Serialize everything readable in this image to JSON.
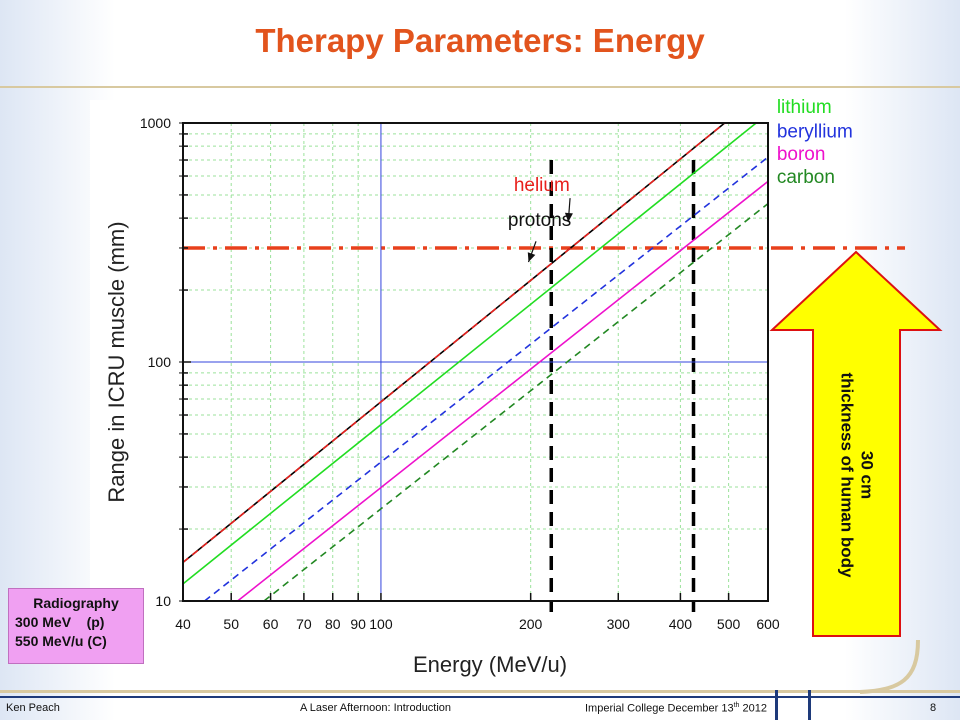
{
  "slide": {
    "title": "Therapy Parameters: Energy",
    "footer": {
      "author": "Ken Peach",
      "event": "A Laser Afternoon: Introduction",
      "venue": "Imperial College December 13",
      "venue_suffix": "th",
      "year": " 2012",
      "page": "8"
    }
  },
  "annotations": {
    "arrow_label_line1": "30 cm",
    "arrow_label_line2": "thickness of human body",
    "radiography_title": "Radiography",
    "radiography_line1": "300 MeV    (p)",
    "radiography_line2": "550 MeV/u (C)"
  },
  "colors": {
    "protons": "#000000",
    "helium": "#e8201c",
    "lithium": "#22dd22",
    "beryllium": "#2233dd",
    "boron": "#ee11cc",
    "carbon": "#228822",
    "threshold": "#e8401c",
    "arrow_fill": "#ffff00",
    "arrow_stroke": "#dd1111"
  },
  "chart_data": {
    "type": "line",
    "xlabel": "Energy (MeV/u)",
    "ylabel": "Range in ICRU muscle (mm)",
    "xscale": "log",
    "yscale": "log",
    "xlim": [
      40,
      600
    ],
    "ylim": [
      10,
      1000
    ],
    "x_ticks": [
      40,
      50,
      60,
      70,
      80,
      90,
      100,
      200,
      300,
      400,
      500,
      600
    ],
    "x_tick_labels": [
      "40",
      "50",
      "60",
      "70",
      "80",
      "90",
      "100",
      "200",
      "300",
      "400",
      "500",
      "600"
    ],
    "y_ticks": [
      10,
      100,
      1000
    ],
    "y_tick_labels": [
      "10",
      "100",
      "1000"
    ],
    "grid": true,
    "series": [
      {
        "name": "protons",
        "style": "solid",
        "points": [
          [
            40,
            14.5
          ],
          [
            491,
            1000
          ]
        ]
      },
      {
        "name": "helium",
        "style": "dashed",
        "points": [
          [
            40,
            14.5
          ],
          [
            491,
            1000
          ]
        ]
      },
      {
        "name": "lithium",
        "style": "solid",
        "points": [
          [
            40,
            11.8
          ],
          [
            568,
            1000
          ]
        ]
      },
      {
        "name": "beryllium",
        "style": "dashed",
        "points": [
          [
            44.2,
            10
          ],
          [
            600,
            720
          ]
        ]
      },
      {
        "name": "boron",
        "style": "solid",
        "points": [
          [
            51.5,
            10
          ],
          [
            600,
            570
          ]
        ]
      },
      {
        "name": "carbon",
        "style": "dashed",
        "points": [
          [
            58.2,
            10
          ],
          [
            600,
            460
          ]
        ]
      }
    ],
    "annotations": [
      {
        "text": "protons",
        "x": 180,
        "y": 370,
        "color": "#111111"
      },
      {
        "text": "helium",
        "x": 185,
        "y": 520,
        "color": "#e8201c"
      },
      {
        "text": "lithium",
        "x": 625,
        "y": 1100,
        "color": "#22dd22"
      },
      {
        "text": "beryllium",
        "x": 625,
        "y": 870,
        "color": "#2233dd"
      },
      {
        "text": "boron",
        "x": 625,
        "y": 700,
        "color": "#ee11cc"
      },
      {
        "text": "carbon",
        "x": 625,
        "y": 560,
        "color": "#228822"
      }
    ],
    "reference_lines": [
      {
        "orientation": "horizontal",
        "value": 300,
        "style": "dash-dot",
        "color": "#e8401c"
      },
      {
        "orientation": "vertical",
        "value": 220,
        "style": "dashed",
        "color": "#000000"
      },
      {
        "orientation": "vertical",
        "value": 425,
        "style": "dashed",
        "color": "#000000"
      },
      {
        "orientation": "vertical",
        "value": 100,
        "style": "solid",
        "color": "#3344dd"
      },
      {
        "orientation": "horizontal",
        "value": 100,
        "style": "solid",
        "color": "#3344dd"
      }
    ]
  }
}
